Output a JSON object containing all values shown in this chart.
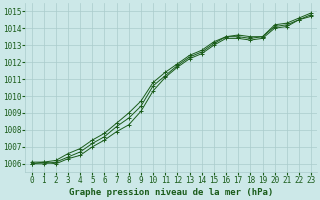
{
  "xlabel": "Graphe pression niveau de la mer (hPa)",
  "ylabel": "",
  "bg_color": "#cce8e8",
  "grid_color": "#aacccc",
  "line_color": "#1a5c1a",
  "x_values": [
    0,
    1,
    2,
    3,
    4,
    5,
    6,
    7,
    8,
    9,
    10,
    11,
    12,
    13,
    14,
    15,
    16,
    17,
    18,
    19,
    20,
    21,
    22,
    23
  ],
  "line1": [
    1006.1,
    1006.1,
    1006.0,
    1006.3,
    1006.5,
    1007.0,
    1007.4,
    1007.9,
    1008.3,
    1009.1,
    1010.3,
    1011.1,
    1011.7,
    1012.2,
    1012.5,
    1013.0,
    1013.4,
    1013.4,
    1013.3,
    1013.4,
    1014.0,
    1014.1,
    1014.5,
    1014.7
  ],
  "line2": [
    1006.0,
    1006.1,
    1006.2,
    1006.6,
    1006.9,
    1007.4,
    1007.8,
    1008.4,
    1009.0,
    1009.7,
    1010.8,
    1011.4,
    1011.9,
    1012.4,
    1012.7,
    1013.2,
    1013.5,
    1013.6,
    1013.5,
    1013.5,
    1014.2,
    1014.3,
    1014.6,
    1014.9
  ],
  "line3": [
    1006.0,
    1006.0,
    1006.1,
    1006.4,
    1006.7,
    1007.2,
    1007.6,
    1008.2,
    1008.7,
    1009.4,
    1010.6,
    1011.2,
    1011.8,
    1012.3,
    1012.6,
    1013.1,
    1013.5,
    1013.5,
    1013.4,
    1013.5,
    1014.1,
    1014.2,
    1014.5,
    1014.8
  ],
  "ylim": [
    1005.5,
    1015.5
  ],
  "yticks": [
    1006,
    1007,
    1008,
    1009,
    1010,
    1011,
    1012,
    1013,
    1014,
    1015
  ],
  "xticks": [
    0,
    1,
    2,
    3,
    4,
    5,
    6,
    7,
    8,
    9,
    10,
    11,
    12,
    13,
    14,
    15,
    16,
    17,
    18,
    19,
    20,
    21,
    22,
    23
  ],
  "tick_color": "#1a5c1a",
  "tick_fontsize": 5.5,
  "xlabel_fontsize": 6.5,
  "marker_size": 2.5,
  "linewidth": 0.7
}
